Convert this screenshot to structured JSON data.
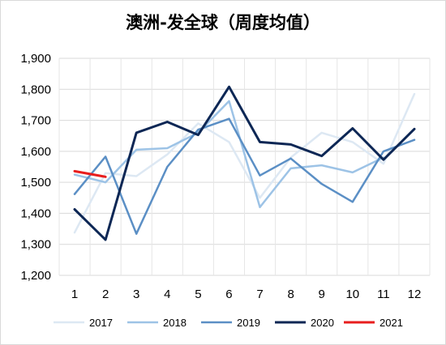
{
  "chart_data": {
    "type": "line",
    "title": "澳洲-发全球（周度均值）",
    "x": [
      "1",
      "2",
      "3",
      "4",
      "5",
      "6",
      "7",
      "8",
      "9",
      "10",
      "11",
      "12"
    ],
    "ylim": [
      1200,
      1900
    ],
    "yticks": [
      "1,200",
      "1,300",
      "1,400",
      "1,500",
      "1,600",
      "1,700",
      "1,800",
      "1,900"
    ],
    "ytick_values": [
      1200,
      1300,
      1400,
      1500,
      1600,
      1700,
      1800,
      1900
    ],
    "grid": true,
    "legend_position": "bottom",
    "series": [
      {
        "name": "2017",
        "color": "#dde8f3",
        "width": 2.5,
        "values": [
          1338,
          1530,
          1520,
          1590,
          1690,
          1630,
          1450,
          1580,
          1660,
          1630,
          1560,
          1785
        ]
      },
      {
        "name": "2018",
        "color": "#9dc3e6",
        "width": 2.5,
        "values": [
          1525,
          1500,
          1605,
          1610,
          1660,
          1762,
          1420,
          1545,
          1555,
          1532,
          1580,
          null
        ]
      },
      {
        "name": "2019",
        "color": "#5b8fc5",
        "width": 2.5,
        "values": [
          1462,
          1583,
          1334,
          1550,
          1670,
          1705,
          1522,
          1577,
          1495,
          1437,
          1600,
          1637
        ]
      },
      {
        "name": "2020",
        "color": "#0d2755",
        "width": 3,
        "values": [
          1413,
          1315,
          1660,
          1695,
          1653,
          1808,
          1630,
          1622,
          1585,
          1674,
          1573,
          1672
        ]
      },
      {
        "name": "2021",
        "color": "#e81e1e",
        "width": 3,
        "values": [
          1536,
          1518,
          null,
          null,
          null,
          null,
          null,
          null,
          null,
          null,
          null,
          null
        ]
      }
    ]
  }
}
